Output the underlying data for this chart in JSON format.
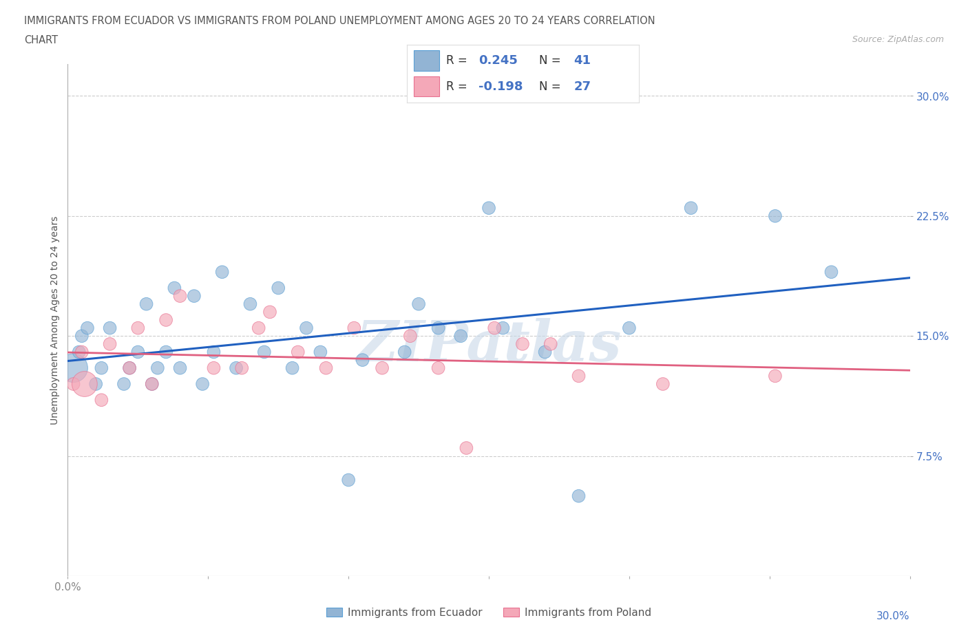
{
  "title_line1": "IMMIGRANTS FROM ECUADOR VS IMMIGRANTS FROM POLAND UNEMPLOYMENT AMONG AGES 20 TO 24 YEARS CORRELATION",
  "title_line2": "CHART",
  "source": "Source: ZipAtlas.com",
  "ylabel": "Unemployment Among Ages 20 to 24 years",
  "xlim": [
    0.0,
    0.3
  ],
  "ylim": [
    0.0,
    0.32
  ],
  "xticks": [
    0.0,
    0.05,
    0.1,
    0.15,
    0.2,
    0.25,
    0.3
  ],
  "ytick_positions": [
    0.075,
    0.15,
    0.225,
    0.3
  ],
  "ytick_labels": [
    "7.5%",
    "15.0%",
    "22.5%",
    "30.0%"
  ],
  "ecuador_color": "#92b4d4",
  "ecuador_edge": "#5a9fd4",
  "poland_color": "#f4a8b8",
  "poland_edge": "#e87090",
  "line_ecuador": "#2060c0",
  "line_poland": "#e06080",
  "R_ecuador": 0.245,
  "N_ecuador": 41,
  "R_poland": -0.198,
  "N_poland": 27,
  "legend_label_ecuador": "Immigrants from Ecuador",
  "legend_label_poland": "Immigrants from Poland",
  "ecuador_x": [
    0.002,
    0.004,
    0.005,
    0.007,
    0.01,
    0.012,
    0.015,
    0.02,
    0.022,
    0.025,
    0.028,
    0.03,
    0.032,
    0.035,
    0.038,
    0.04,
    0.045,
    0.048,
    0.052,
    0.055,
    0.06,
    0.065,
    0.07,
    0.075,
    0.08,
    0.085,
    0.09,
    0.1,
    0.105,
    0.12,
    0.125,
    0.132,
    0.14,
    0.15,
    0.155,
    0.17,
    0.182,
    0.2,
    0.222,
    0.252,
    0.272
  ],
  "ecuador_y": [
    0.13,
    0.14,
    0.15,
    0.155,
    0.12,
    0.13,
    0.155,
    0.12,
    0.13,
    0.14,
    0.17,
    0.12,
    0.13,
    0.14,
    0.18,
    0.13,
    0.175,
    0.12,
    0.14,
    0.19,
    0.13,
    0.17,
    0.14,
    0.18,
    0.13,
    0.155,
    0.14,
    0.06,
    0.135,
    0.14,
    0.17,
    0.155,
    0.15,
    0.23,
    0.155,
    0.14,
    0.05,
    0.155,
    0.23,
    0.225,
    0.19
  ],
  "ecuador_outlier_big": [
    0
  ],
  "poland_x": [
    0.002,
    0.005,
    0.006,
    0.012,
    0.015,
    0.022,
    0.025,
    0.03,
    0.035,
    0.04,
    0.052,
    0.062,
    0.068,
    0.072,
    0.082,
    0.092,
    0.102,
    0.112,
    0.122,
    0.132,
    0.142,
    0.152,
    0.162,
    0.172,
    0.182,
    0.212,
    0.252
  ],
  "poland_y": [
    0.12,
    0.14,
    0.12,
    0.11,
    0.145,
    0.13,
    0.155,
    0.12,
    0.16,
    0.175,
    0.13,
    0.13,
    0.155,
    0.165,
    0.14,
    0.13,
    0.155,
    0.13,
    0.15,
    0.13,
    0.08,
    0.155,
    0.145,
    0.145,
    0.125,
    0.12,
    0.125
  ],
  "poland_outlier_big": [
    2
  ],
  "watermark": "ZIPatlas",
  "watermark_color": "#c8d8e8",
  "background_color": "#ffffff",
  "grid_color": "#cccccc",
  "tick_color": "#888888",
  "label_color": "#4472c4",
  "title_color": "#555555"
}
